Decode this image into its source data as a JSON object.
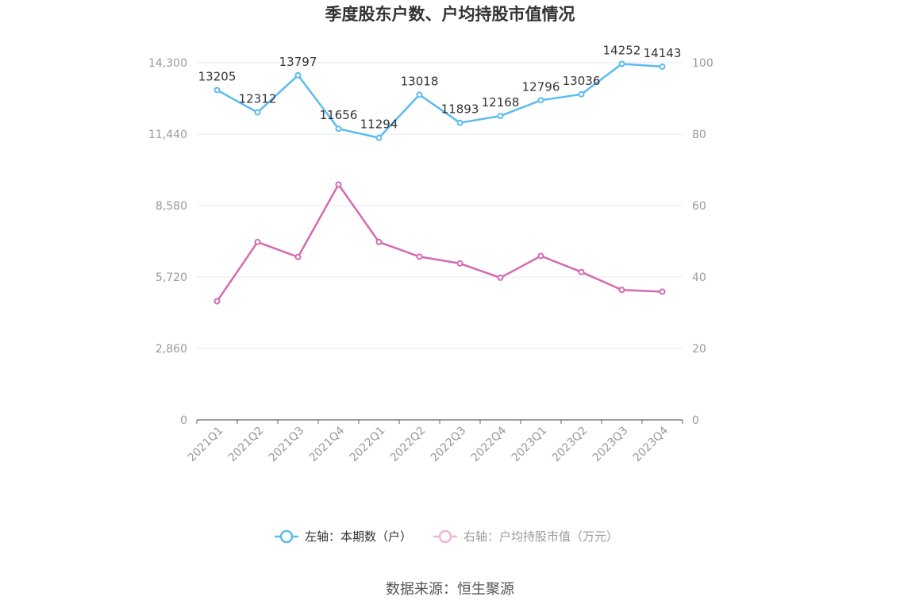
{
  "chart_data": {
    "type": "line",
    "title": "季度股东户数、户均持股市值情况",
    "categories": [
      "2021Q1",
      "2021Q2",
      "2021Q3",
      "2021Q4",
      "2022Q1",
      "2022Q2",
      "2022Q3",
      "2022Q4",
      "2023Q1",
      "2023Q2",
      "2023Q3",
      "2023Q4"
    ],
    "left_axis": {
      "min": 0,
      "max": 14300,
      "ticks": [
        "0",
        "2,860",
        "5,720",
        "8,580",
        "11,440",
        "14,300"
      ]
    },
    "right_axis": {
      "min": 0,
      "max": 100,
      "ticks": [
        "0",
        "20",
        "40",
        "60",
        "80",
        "100"
      ]
    },
    "grid": true,
    "legend_position": "bottom",
    "series": [
      {
        "name": "左轴：本期数（户）",
        "axis": "left",
        "color": "#5bbcee",
        "values": [
          13205,
          12312,
          13797,
          11656,
          11294,
          13018,
          11893,
          12168,
          12796,
          13036,
          14252,
          14143
        ],
        "labels": [
          "13205",
          "12312",
          "13797",
          "11656",
          "11294",
          "13018",
          "11893",
          "12168",
          "12796",
          "13036",
          "14252",
          "14143"
        ]
      },
      {
        "name": "右轴：户均持股市值（万元）",
        "axis": "right",
        "color": "#d36bb0",
        "values": [
          33.2,
          49.8,
          45.6,
          65.9,
          49.8,
          45.7,
          43.8,
          39.8,
          45.9,
          41.4,
          36.4,
          35.9
        ]
      }
    ]
  },
  "source": "数据来源：恒生聚源"
}
